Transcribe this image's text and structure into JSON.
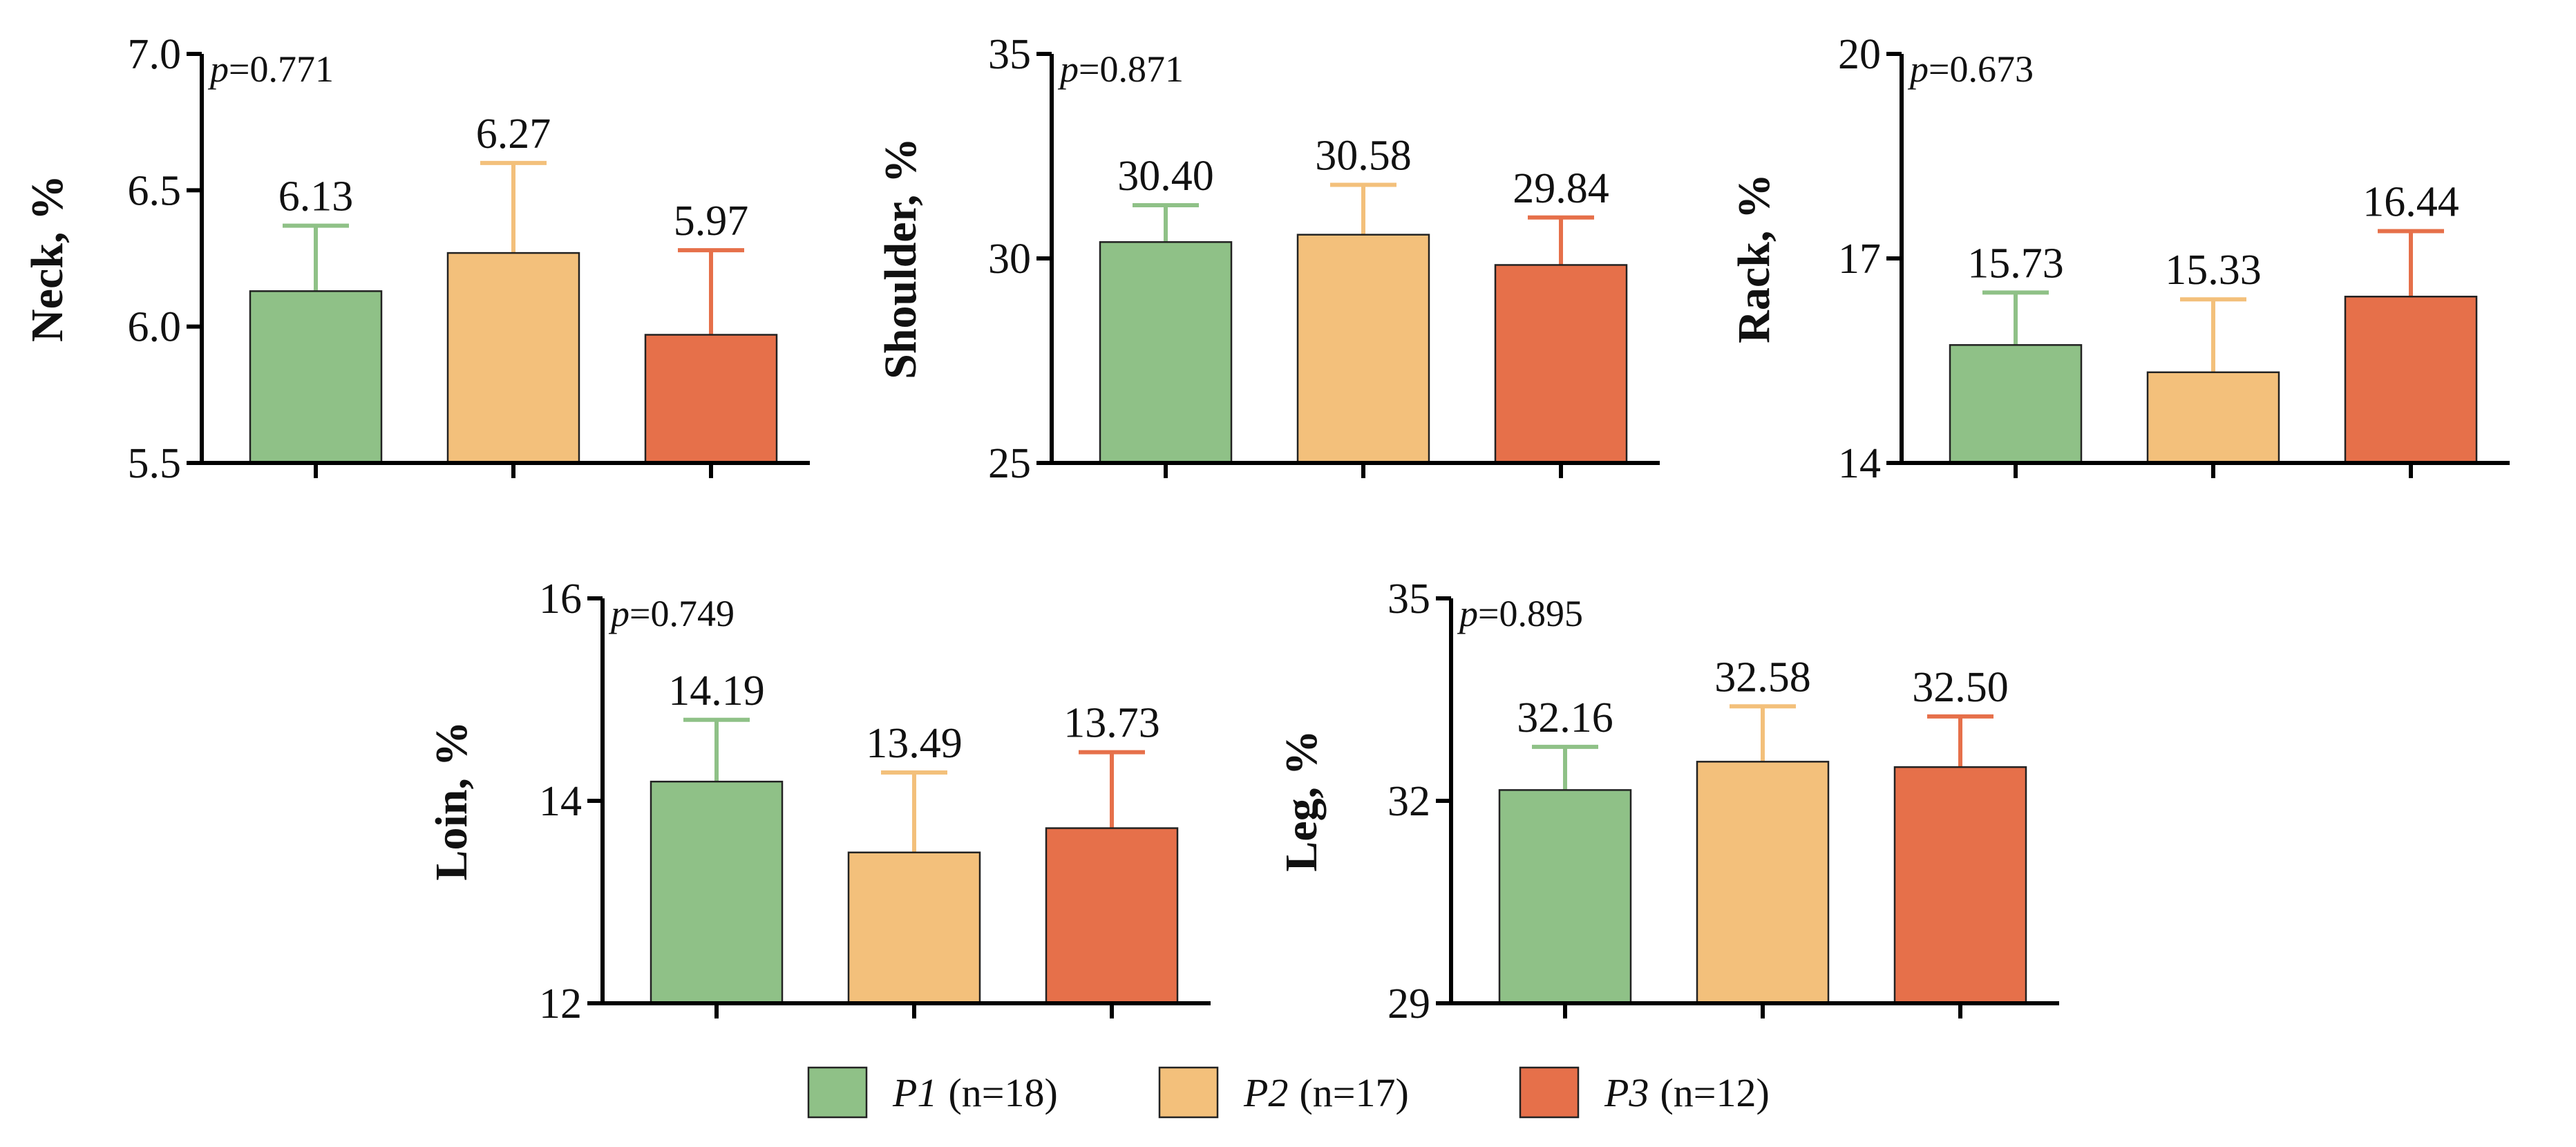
{
  "colors": {
    "P1": "#8fc187",
    "P2": "#f3c07b",
    "P3": "#e6704a"
  },
  "legend": [
    {
      "key": "P1",
      "group": "P1",
      "n_text": "(n=18)"
    },
    {
      "key": "P2",
      "group": "P2",
      "n_text": "(n=17)"
    },
    {
      "key": "P3",
      "group": "P3",
      "n_text": "(n=12)"
    }
  ],
  "chart_data": [
    {
      "type": "bar",
      "ylabel": "Neck, %",
      "p_text": "p=0.771",
      "ylim": [
        5.5,
        7.0
      ],
      "yticks": [
        "5.5",
        "6.0",
        "6.5",
        "7.0"
      ],
      "categories": [
        "P1",
        "P2",
        "P3"
      ],
      "values": [
        6.13,
        6.27,
        5.97
      ],
      "value_labels": [
        "6.13",
        "6.27",
        "5.97"
      ],
      "error_upper": [
        6.37,
        6.6,
        6.28
      ]
    },
    {
      "type": "bar",
      "ylabel": "Shoulder, %",
      "p_text": "p=0.871",
      "ylim": [
        25,
        35
      ],
      "yticks": [
        "25",
        "30",
        "35"
      ],
      "categories": [
        "P1",
        "P2",
        "P3"
      ],
      "values": [
        30.4,
        30.58,
        29.84
      ],
      "value_labels": [
        "30.40",
        "30.58",
        "29.84"
      ],
      "error_upper": [
        31.3,
        31.8,
        31.0
      ]
    },
    {
      "type": "bar",
      "ylabel": "Rack, %",
      "p_text": "p=0.673",
      "ylim": [
        14,
        20
      ],
      "yticks": [
        "14",
        "17",
        "20"
      ],
      "categories": [
        "P1",
        "P2",
        "P3"
      ],
      "values": [
        15.73,
        15.33,
        16.44
      ],
      "value_labels": [
        "15.73",
        "15.33",
        "16.44"
      ],
      "error_upper": [
        16.5,
        16.4,
        17.4
      ]
    },
    {
      "type": "bar",
      "ylabel": "Loin, %",
      "p_text": "p=0.749",
      "ylim": [
        12,
        16
      ],
      "yticks": [
        "12",
        "14",
        "16"
      ],
      "categories": [
        "P1",
        "P2",
        "P3"
      ],
      "values": [
        14.19,
        13.49,
        13.73
      ],
      "value_labels": [
        "14.19",
        "13.49",
        "13.73"
      ],
      "error_upper": [
        14.8,
        14.28,
        14.48
      ]
    },
    {
      "type": "bar",
      "ylabel": "Leg, %",
      "p_text": "p=0.895",
      "ylim": [
        29,
        35
      ],
      "yticks": [
        "29",
        "32",
        "35"
      ],
      "categories": [
        "P1",
        "P2",
        "P3"
      ],
      "values": [
        32.16,
        32.58,
        32.5
      ],
      "value_labels": [
        "32.16",
        "32.58",
        "32.50"
      ],
      "error_upper": [
        32.8,
        33.4,
        33.25
      ]
    }
  ]
}
